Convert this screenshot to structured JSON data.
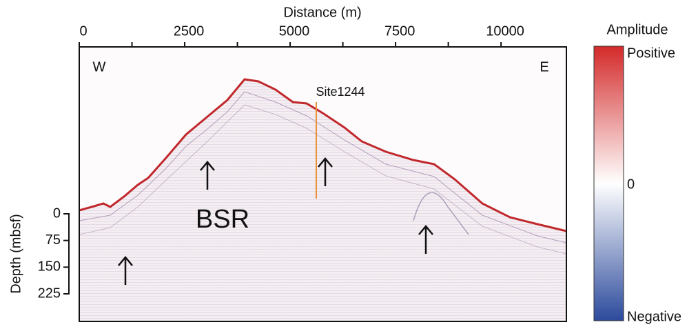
{
  "distance_axis": {
    "label": "Distance (m)",
    "lim": [
      0,
      11550
    ],
    "ticks": [
      0,
      2500,
      5000,
      7500,
      10000
    ],
    "minor_ticks": [
      1250,
      3750,
      6250,
      8750
    ]
  },
  "depth_axis": {
    "label": "Depth (mbsf)",
    "lim": [
      0,
      225
    ],
    "ticks": [
      0,
      75,
      150,
      225
    ]
  },
  "colorbar": {
    "title": "Amplitude",
    "labels": [
      "Positive",
      "0",
      "Negative"
    ]
  },
  "annotations": {
    "west": "W",
    "east": "E",
    "site": "Site1244",
    "bsr": "BSR"
  }
}
